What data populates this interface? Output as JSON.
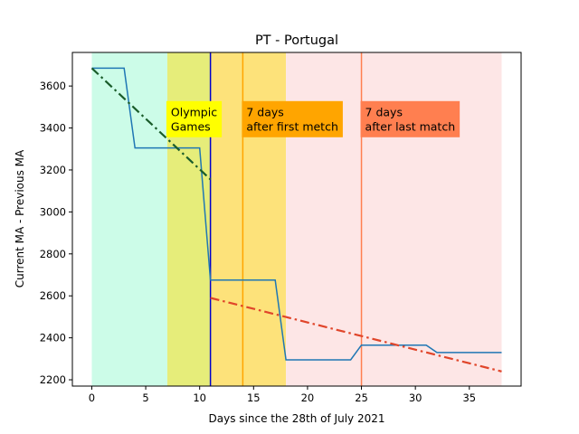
{
  "chart_data": {
    "type": "line",
    "title": "PT - Portugal",
    "xlabel": "Days since the 28th of July 2021",
    "ylabel": "Current MA - Previous MA",
    "xlim": [
      -1.8,
      39.8
    ],
    "ylim": [
      2170,
      3760
    ],
    "xticks": [
      0,
      5,
      10,
      15,
      20,
      25,
      30,
      35
    ],
    "yticks": [
      2200,
      2400,
      2600,
      2800,
      3000,
      3200,
      3400,
      3600
    ],
    "grid": false,
    "legend": "none",
    "regions": [
      {
        "x0": 0,
        "x1": 7,
        "color": "#ccfce8"
      },
      {
        "x0": 7,
        "x1": 11,
        "color": "#e6ed7a"
      },
      {
        "x0": 11,
        "x1": 18,
        "color": "#fde27a"
      },
      {
        "x0": 18,
        "x1": 38,
        "color": "#fde6e6"
      }
    ],
    "vlines": [
      {
        "x": 11,
        "color": "#0000cc"
      },
      {
        "x": 14,
        "color": "#ffa500"
      },
      {
        "x": 25,
        "color": "#ff7f50"
      }
    ],
    "series": [
      {
        "color": "#1f77b4",
        "style": "solid",
        "x": [
          0,
          3,
          4,
          10,
          11,
          17,
          18,
          24,
          25,
          31,
          32,
          38
        ],
        "y": [
          3685,
          3685,
          3305,
          3305,
          2675,
          2675,
          2295,
          2295,
          2365,
          2365,
          2330,
          2330
        ]
      },
      {
        "color": "#1a5c2a",
        "style": "dashdot",
        "x": [
          0,
          11
        ],
        "y": [
          3685,
          3155
        ]
      },
      {
        "color": "#e0452a",
        "style": "dashdot",
        "x": [
          11,
          38
        ],
        "y": [
          2590,
          2240
        ]
      }
    ],
    "annotations": [
      {
        "lines": [
          "Olympic",
          "Games"
        ],
        "x": 7,
        "y": 3470,
        "bg": "#ffff00"
      },
      {
        "lines": [
          "7 days",
          "after first metch"
        ],
        "x": 14,
        "y": 3470,
        "bg": "#ffa500"
      },
      {
        "lines": [
          "7 days",
          "after last match"
        ],
        "x": 25,
        "y": 3470,
        "bg": "#ff7f50"
      }
    ]
  }
}
